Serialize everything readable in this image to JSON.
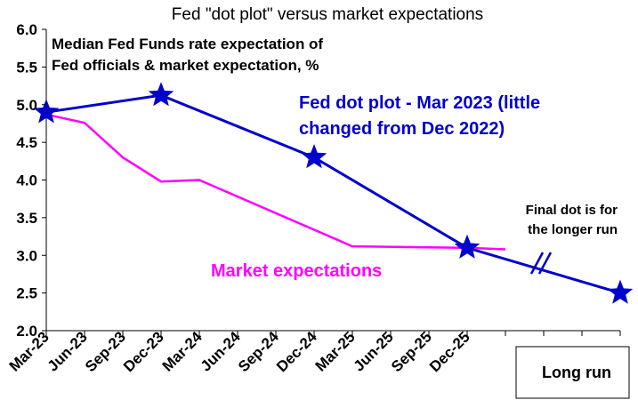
{
  "chart_data": {
    "type": "line",
    "title": "Fed \"dot plot\" versus market expectations",
    "subtitle_lines": [
      "Median Fed Funds rate expectation of",
      "Fed officials & market expectation, %"
    ],
    "ylim": [
      2.0,
      6.0
    ],
    "yticks": [
      "6.0",
      "5.5",
      "5.0",
      "4.5",
      "4.0",
      "3.5",
      "3.0",
      "2.5",
      "2.0"
    ],
    "categories": [
      "Mar-23",
      "Jun-23",
      "Sep-23",
      "Dec-23",
      "Mar-24",
      "Jun-24",
      "Sep-24",
      "Dec-24",
      "Mar-25",
      "Jun-25",
      "Sep-25",
      "Dec-25"
    ],
    "extra_category": "Long run",
    "grid": false,
    "series": [
      {
        "name": "Fed dot plot - Mar 2023 (little changed from Dec 2022)",
        "color": "#0000CC",
        "marker": "star",
        "points": [
          {
            "x": "Mar-23",
            "y": 4.9
          },
          {
            "x": "Dec-23",
            "y": 5.125
          },
          {
            "x": "Dec-24",
            "y": 4.3
          },
          {
            "x": "Dec-25",
            "y": 3.1
          },
          {
            "x": "Long run",
            "y": 2.5
          }
        ]
      },
      {
        "name": "Market expectations",
        "color": "#FF00FF",
        "marker": "none",
        "points": [
          {
            "x": "Mar-23",
            "y": 4.87
          },
          {
            "x": "Jun-23",
            "y": 4.76
          },
          {
            "x": "Sep-23",
            "y": 4.3
          },
          {
            "x": "Dec-23",
            "y": 3.98
          },
          {
            "x": "Mar-24",
            "y": 4.0
          },
          {
            "x": "Mar-25",
            "y": 3.12
          },
          {
            "x": "Dec-25",
            "y": 3.1
          },
          {
            "x": "Mar-26",
            "y": 3.08
          }
        ]
      }
    ],
    "annotations": {
      "dot_plot_label_lines": [
        "Fed dot plot - Mar 2023 (little",
        "changed from Dec 2022)"
      ],
      "market_label": "Market expectations",
      "final_dot_lines": [
        "Final dot is for",
        "the longer run"
      ]
    },
    "colors": {
      "dot_plot": "#0000CC",
      "market": "#FF00FF",
      "axis": "#000000"
    }
  }
}
